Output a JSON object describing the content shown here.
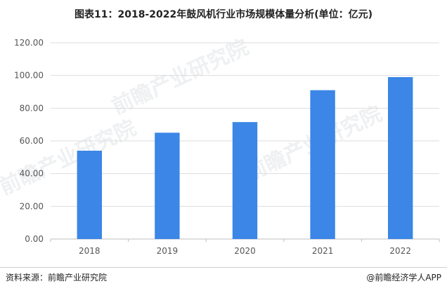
{
  "title": "图表11：2018-2022年鼓风机行业市场规模体量分析(单位：亿元)",
  "source": "资料来源：前瞻产业研究院",
  "brand": "@前瞻经济学人APP",
  "watermark": "前瞻产业研究院",
  "colors": {
    "bar": "#3b86e6",
    "grid": "#dddddd",
    "axis": "#bfbfbf",
    "tick_text": "#555555"
  },
  "chart_data": {
    "type": "bar",
    "title": "",
    "xlabel": "",
    "ylabel": "",
    "categories": [
      "2018",
      "2019",
      "2020",
      "2021",
      "2022"
    ],
    "values": [
      54,
      65,
      71.5,
      91,
      99
    ],
    "ylim": [
      0,
      120
    ],
    "yticks": [
      "0.00",
      "20.00",
      "40.00",
      "60.00",
      "80.00",
      "100.00",
      "120.00"
    ],
    "grid": true,
    "legend": "none"
  }
}
